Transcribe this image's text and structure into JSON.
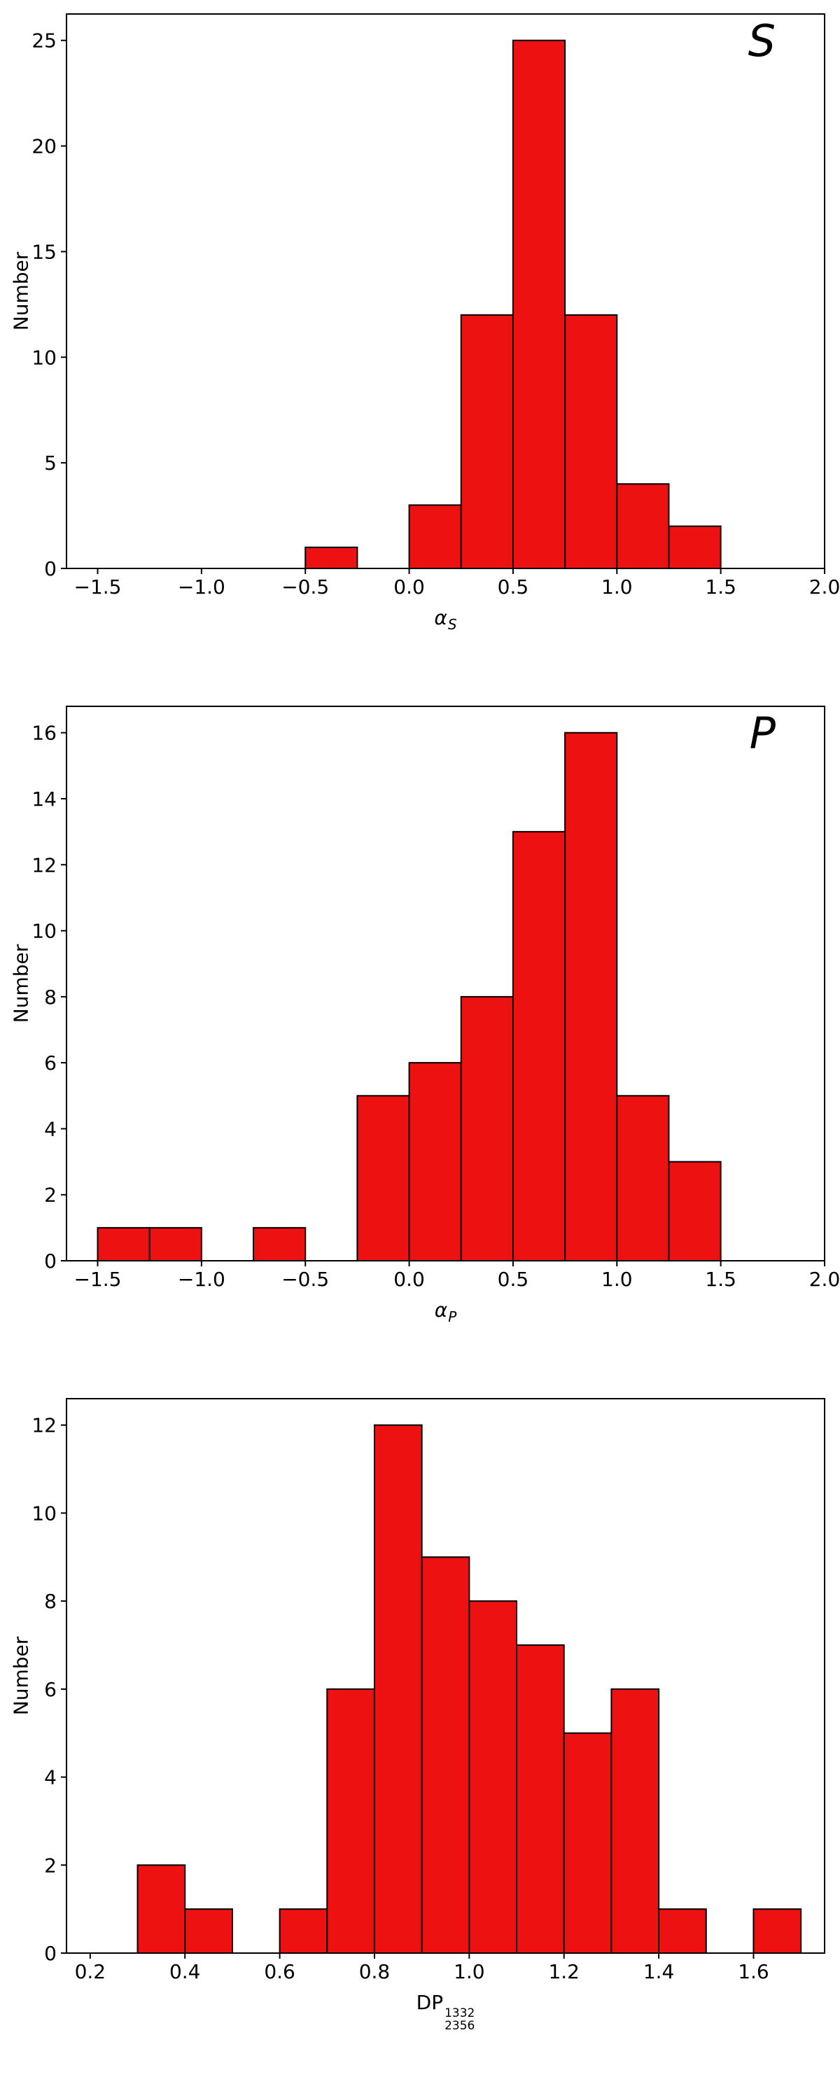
{
  "figure": {
    "background": "#ffffff"
  },
  "chart_data": [
    {
      "type": "histogram",
      "panel_label": "S",
      "ylabel": "Number",
      "xlabel": {
        "base": "α",
        "base_italic": true,
        "sup": "",
        "sub": "S"
      },
      "bar_color": "#ee1111",
      "edge_color": "#000000",
      "grid": false,
      "legend": "none",
      "xlim": [
        -1.65,
        2.0
      ],
      "ylim": [
        0,
        26.25
      ],
      "xticks": {
        "values": [
          -1.5,
          -1.0,
          -0.5,
          0.0,
          0.5,
          1.0,
          1.5,
          2.0
        ],
        "labels": [
          "−1.5",
          "−1.0",
          "−0.5",
          "0.0",
          "0.5",
          "1.0",
          "1.5",
          "2.0"
        ]
      },
      "yticks": {
        "values": [
          0,
          5,
          10,
          15,
          20,
          25
        ],
        "labels": [
          "0",
          "5",
          "10",
          "15",
          "20",
          "25"
        ]
      },
      "bin_width": 0.25,
      "bins": [
        {
          "x0": -0.5,
          "x1": -0.25,
          "count": 1
        },
        {
          "x0": 0.0,
          "x1": 0.25,
          "count": 3
        },
        {
          "x0": 0.25,
          "x1": 0.5,
          "count": 12
        },
        {
          "x0": 0.5,
          "x1": 0.75,
          "count": 25
        },
        {
          "x0": 0.75,
          "x1": 1.0,
          "count": 12
        },
        {
          "x0": 1.0,
          "x1": 1.25,
          "count": 4
        },
        {
          "x0": 1.25,
          "x1": 1.5,
          "count": 2
        }
      ]
    },
    {
      "type": "histogram",
      "panel_label": "P",
      "ylabel": "Number",
      "xlabel": {
        "base": "α",
        "base_italic": true,
        "sup": "",
        "sub": "P"
      },
      "bar_color": "#ee1111",
      "edge_color": "#000000",
      "grid": false,
      "legend": "none",
      "xlim": [
        -1.65,
        2.0
      ],
      "ylim": [
        0,
        16.8
      ],
      "xticks": {
        "values": [
          -1.5,
          -1.0,
          -0.5,
          0.0,
          0.5,
          1.0,
          1.5,
          2.0
        ],
        "labels": [
          "−1.5",
          "−1.0",
          "−0.5",
          "0.0",
          "0.5",
          "1.0",
          "1.5",
          "2.0"
        ]
      },
      "yticks": {
        "values": [
          0,
          2,
          4,
          6,
          8,
          10,
          12,
          14,
          16
        ],
        "labels": [
          "0",
          "2",
          "4",
          "6",
          "8",
          "10",
          "12",
          "14",
          "16"
        ]
      },
      "bin_width": 0.25,
      "bins": [
        {
          "x0": -1.5,
          "x1": -1.25,
          "count": 1
        },
        {
          "x0": -1.25,
          "x1": -1.0,
          "count": 1
        },
        {
          "x0": -0.75,
          "x1": -0.5,
          "count": 1
        },
        {
          "x0": -0.25,
          "x1": 0.0,
          "count": 5
        },
        {
          "x0": 0.0,
          "x1": 0.25,
          "count": 6
        },
        {
          "x0": 0.25,
          "x1": 0.5,
          "count": 8
        },
        {
          "x0": 0.5,
          "x1": 0.75,
          "count": 13
        },
        {
          "x0": 0.75,
          "x1": 1.0,
          "count": 16
        },
        {
          "x0": 1.0,
          "x1": 1.25,
          "count": 5
        },
        {
          "x0": 1.25,
          "x1": 1.5,
          "count": 3
        }
      ]
    },
    {
      "type": "histogram",
      "panel_label": "",
      "ylabel": "Number",
      "xlabel": {
        "base": "DP",
        "base_italic": false,
        "sup": "1332",
        "sub": "2356"
      },
      "bar_color": "#ee1111",
      "edge_color": "#000000",
      "grid": false,
      "legend": "none",
      "xlim": [
        0.15,
        1.75
      ],
      "ylim": [
        0,
        12.6
      ],
      "xticks": {
        "values": [
          0.2,
          0.4,
          0.6,
          0.8,
          1.0,
          1.2,
          1.4,
          1.6
        ],
        "labels": [
          "0.2",
          "0.4",
          "0.6",
          "0.8",
          "1.0",
          "1.2",
          "1.4",
          "1.6"
        ]
      },
      "yticks": {
        "values": [
          0,
          2,
          4,
          6,
          8,
          10,
          12
        ],
        "labels": [
          "0",
          "2",
          "4",
          "6",
          "8",
          "10",
          "12"
        ]
      },
      "bin_width": 0.1,
      "bins": [
        {
          "x0": 0.3,
          "x1": 0.4,
          "count": 2
        },
        {
          "x0": 0.4,
          "x1": 0.5,
          "count": 1
        },
        {
          "x0": 0.6,
          "x1": 0.7,
          "count": 1
        },
        {
          "x0": 0.7,
          "x1": 0.8,
          "count": 6
        },
        {
          "x0": 0.8,
          "x1": 0.9,
          "count": 12
        },
        {
          "x0": 0.9,
          "x1": 1.0,
          "count": 9
        },
        {
          "x0": 1.0,
          "x1": 1.1,
          "count": 8
        },
        {
          "x0": 1.1,
          "x1": 1.2,
          "count": 7
        },
        {
          "x0": 1.2,
          "x1": 1.3,
          "count": 5
        },
        {
          "x0": 1.3,
          "x1": 1.4,
          "count": 6
        },
        {
          "x0": 1.4,
          "x1": 1.5,
          "count": 1
        },
        {
          "x0": 1.6,
          "x1": 1.7,
          "count": 1
        }
      ]
    }
  ]
}
